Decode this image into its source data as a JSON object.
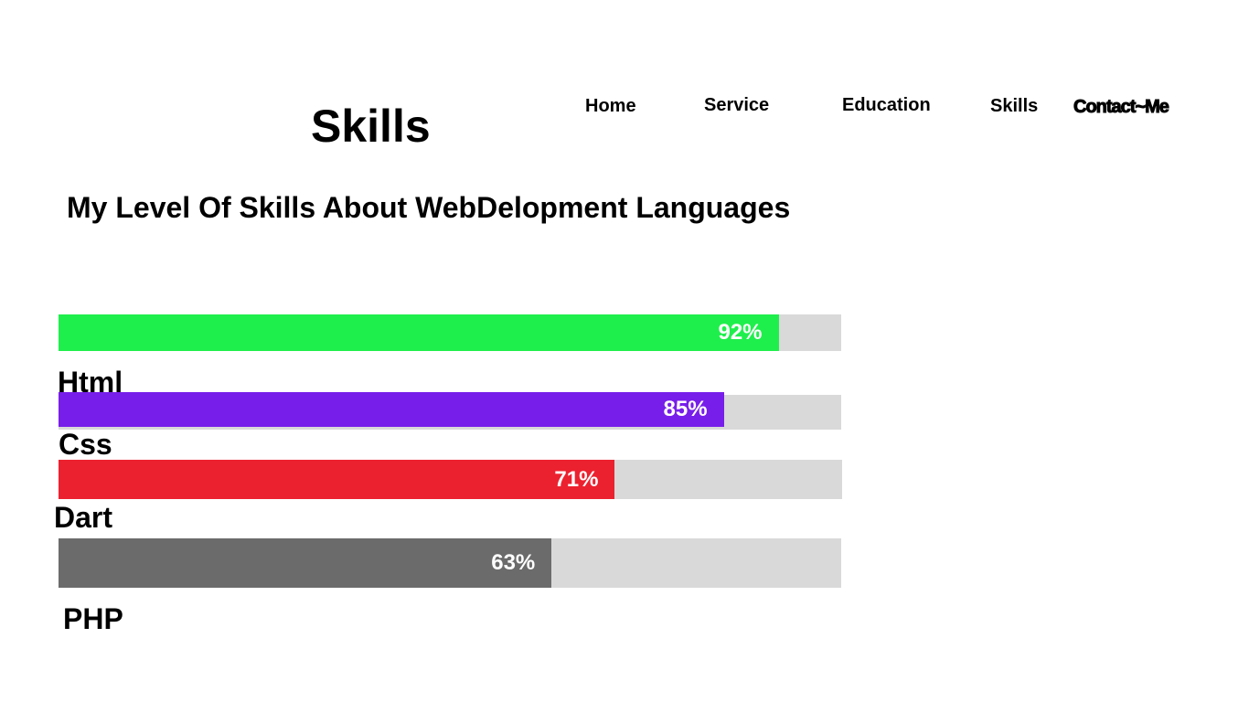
{
  "page": {
    "title": "Skills",
    "subtitle": "My Level Of Skills About WebDelopment Languages"
  },
  "nav": {
    "items": [
      {
        "label": "Home"
      },
      {
        "label": "Service"
      },
      {
        "label": "Education"
      },
      {
        "label": "Skills"
      },
      {
        "label": "Contact~Me"
      }
    ]
  },
  "skills": [
    {
      "name": "Html",
      "percent": 92,
      "value_label": "92%",
      "color": "#1fef4c"
    },
    {
      "name": "Css",
      "percent": 85,
      "value_label": "85%",
      "color": "#771eea"
    },
    {
      "name": "Dart",
      "percent": 71,
      "value_label": "71%",
      "color": "#ec212f"
    },
    {
      "name": "PHP",
      "percent": 63,
      "value_label": "63%",
      "color": "#6b6b6b"
    }
  ],
  "colors": {
    "track": "#d9d9d9",
    "value_text": "#ffffff"
  }
}
